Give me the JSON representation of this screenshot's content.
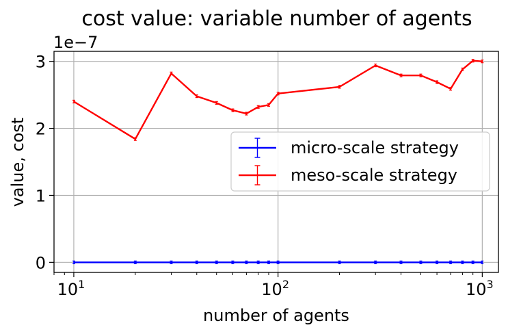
{
  "chart_data": {
    "type": "line",
    "title": "cost value: variable number of agents",
    "xlabel": "number of agents",
    "ylabel": "value, cost",
    "x_scale": "log",
    "xlim": [
      8,
      1200
    ],
    "ylim": [
      -0.15,
      3.15
    ],
    "y_offset_label": "1e−7",
    "x_ticks": [
      {
        "value": 10,
        "base": "10",
        "exp": "1"
      },
      {
        "value": 100,
        "base": "10",
        "exp": "2"
      },
      {
        "value": 1000,
        "base": "10",
        "exp": "3"
      }
    ],
    "y_ticks": [
      {
        "value": 0,
        "label": "0"
      },
      {
        "value": 1,
        "label": "1"
      },
      {
        "value": 2,
        "label": "2"
      },
      {
        "value": 3,
        "label": "3"
      }
    ],
    "grid": true,
    "legend_position": "center-right",
    "x": [
      10,
      20,
      30,
      40,
      50,
      60,
      70,
      80,
      90,
      100,
      200,
      300,
      400,
      500,
      600,
      700,
      800,
      900,
      1000
    ],
    "series": [
      {
        "name": "micro-scale strategy",
        "color": "#0000ff",
        "values": [
          0,
          0,
          0,
          0,
          0,
          0,
          0,
          0,
          0,
          0,
          0,
          0,
          0,
          0,
          0,
          0,
          0,
          0,
          0
        ]
      },
      {
        "name": "meso-scale strategy",
        "color": "#ff0000",
        "values": [
          2.4,
          1.84,
          2.82,
          2.48,
          2.38,
          2.27,
          2.22,
          2.32,
          2.35,
          2.52,
          2.62,
          2.94,
          2.79,
          2.79,
          2.69,
          2.59,
          2.88,
          3.01,
          3.0
        ]
      }
    ]
  }
}
